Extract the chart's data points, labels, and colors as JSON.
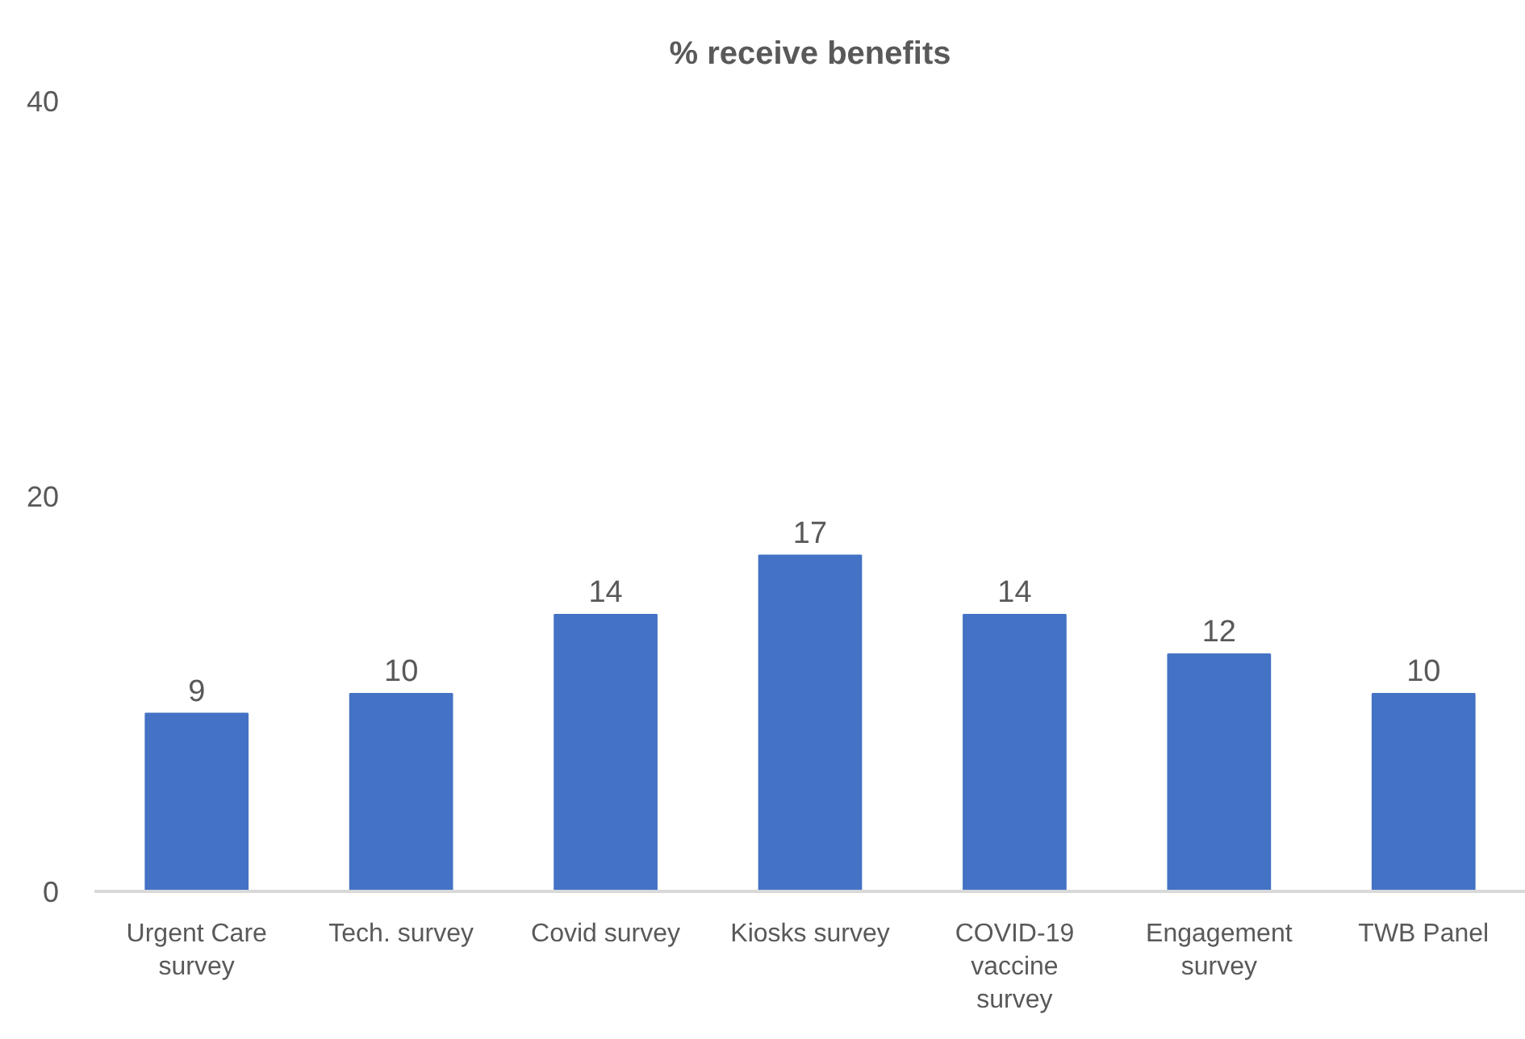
{
  "chart_data": {
    "type": "bar",
    "title": "% receive benefits",
    "categories": [
      "Urgent Care survey",
      "Tech. survey",
      "Covid survey",
      "Kiosks survey",
      "COVID-19 vaccine survey",
      "Engagement survey",
      "TWB Panel"
    ],
    "values": [
      9,
      10,
      14,
      17,
      14,
      12,
      10
    ],
    "color": "#4472c4",
    "ylim": [
      0,
      40
    ],
    "yticks": [
      0,
      20,
      40
    ],
    "data_labels": true
  }
}
